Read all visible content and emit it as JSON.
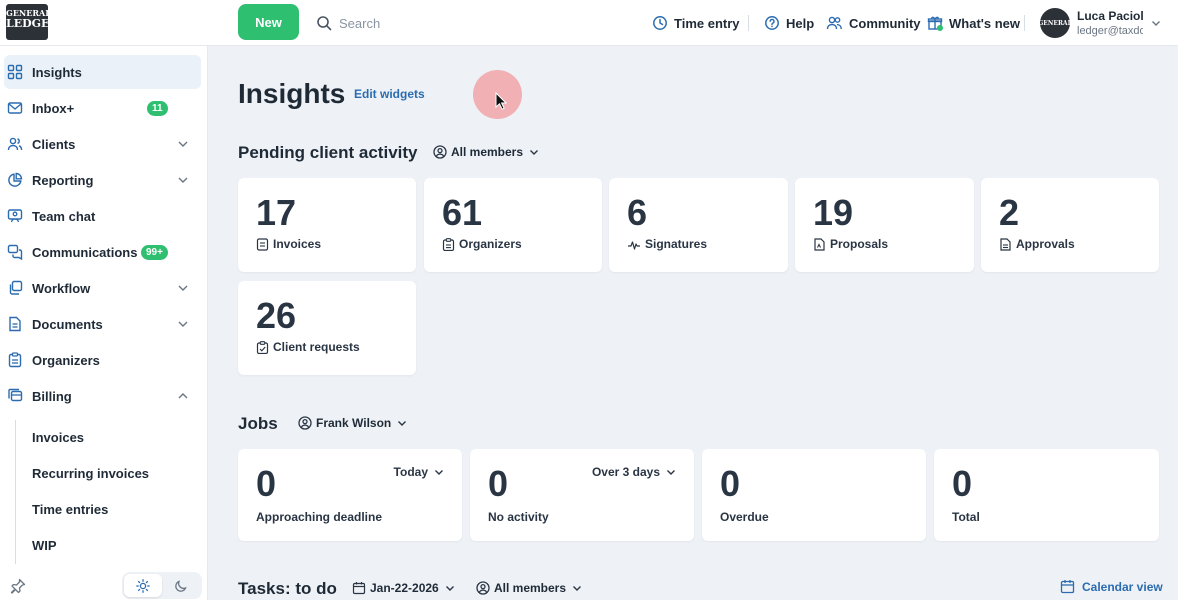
{
  "brand": {
    "logo_line1": "GENERAL",
    "logo_line2": "LEDGER"
  },
  "topbar": {
    "new_label": "New",
    "search_placeholder": "Search",
    "time_entry": "Time entry",
    "help": "Help",
    "community": "Community",
    "whats_new": "What's new",
    "user_name": "Luca Pacioli",
    "user_email": "ledger@taxdome.com",
    "accent_color": "#2fbf71"
  },
  "sidebar": {
    "items": [
      {
        "label": "Insights",
        "icon": "grid-icon"
      },
      {
        "label": "Inbox+",
        "icon": "mail-icon",
        "badge": "11"
      },
      {
        "label": "Clients",
        "icon": "users-icon"
      },
      {
        "label": "Reporting",
        "icon": "pie-chart-icon"
      },
      {
        "label": "Team chat",
        "icon": "team-chat-icon"
      },
      {
        "label": "Communications",
        "icon": "chat-bubbles-icon",
        "badge": "99+"
      },
      {
        "label": "Workflow",
        "icon": "workflow-icon"
      },
      {
        "label": "Documents",
        "icon": "document-icon"
      },
      {
        "label": "Organizers",
        "icon": "clipboard-icon"
      },
      {
        "label": "Billing",
        "icon": "billing-icon"
      }
    ],
    "billing_sub": [
      "Invoices",
      "Recurring invoices",
      "Time entries",
      "WIP"
    ]
  },
  "main": {
    "title": "Insights",
    "edit_widgets": "Edit widgets",
    "pending": {
      "title": "Pending client activity",
      "filter": "All members",
      "cards": [
        {
          "value": "17",
          "label": "Invoices",
          "icon": "invoice-icon"
        },
        {
          "value": "61",
          "label": "Organizers",
          "icon": "clipboard-icon"
        },
        {
          "value": "6",
          "label": "Signatures",
          "icon": "signature-icon"
        },
        {
          "value": "19",
          "label": "Proposals",
          "icon": "proposal-icon"
        },
        {
          "value": "2",
          "label": "Approvals",
          "icon": "approval-icon"
        },
        {
          "value": "26",
          "label": "Client requests",
          "icon": "client-request-icon"
        }
      ]
    },
    "jobs": {
      "title": "Jobs",
      "filter": "Frank Wilson",
      "cards": [
        {
          "value": "0",
          "label": "Approaching deadline",
          "dropdown": "Today"
        },
        {
          "value": "0",
          "label": "No activity",
          "dropdown": "Over 3 days"
        },
        {
          "value": "0",
          "label": "Overdue"
        },
        {
          "value": "0",
          "label": "Total"
        }
      ]
    },
    "tasks": {
      "title": "Tasks: to do",
      "date_filter": "Jan-22-2026",
      "member_filter": "All members",
      "calendar_view": "Calendar view"
    }
  }
}
